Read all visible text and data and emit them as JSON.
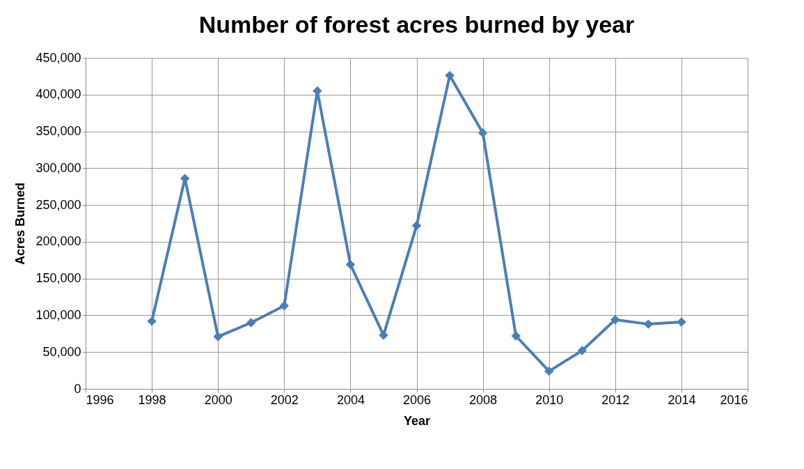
{
  "chart_data": {
    "type": "line",
    "title": "Number of forest acres burned by year",
    "xlabel": "Year",
    "ylabel": "Acres Burned",
    "x": [
      1998,
      1999,
      2000,
      2001,
      2002,
      2003,
      2004,
      2005,
      2006,
      2007,
      2008,
      2009,
      2010,
      2011,
      2012,
      2013,
      2014
    ],
    "series": [
      {
        "color": "#4a7ebb",
        "values": [
          92000,
          286000,
          71000,
          90000,
          113000,
          405000,
          169000,
          73000,
          222000,
          426000,
          348000,
          72000,
          24000,
          52000,
          94000,
          88000,
          91000
        ]
      }
    ],
    "xlim": [
      1996,
      2016
    ],
    "xticks": [
      1996,
      1998,
      2000,
      2002,
      2004,
      2006,
      2008,
      2010,
      2012,
      2014,
      2016
    ],
    "ylim": [
      0,
      450000
    ],
    "yticks": [
      0,
      {
        "value": 50000,
        "label": "50,000"
      },
      {
        "value": 100000,
        "label": "100,000"
      },
      {
        "value": 150000,
        "label": "150,000"
      },
      {
        "value": 200000,
        "label": "200,000"
      },
      {
        "value": 250000,
        "label": "250,000"
      },
      {
        "value": 300000,
        "label": "300,000"
      },
      {
        "value": 350000,
        "label": "350,000"
      },
      {
        "value": 400000,
        "label": "400,000"
      },
      {
        "value": 450000,
        "label": "450,000"
      }
    ],
    "grid": true,
    "marker": "diamond",
    "line_style": "solid"
  }
}
